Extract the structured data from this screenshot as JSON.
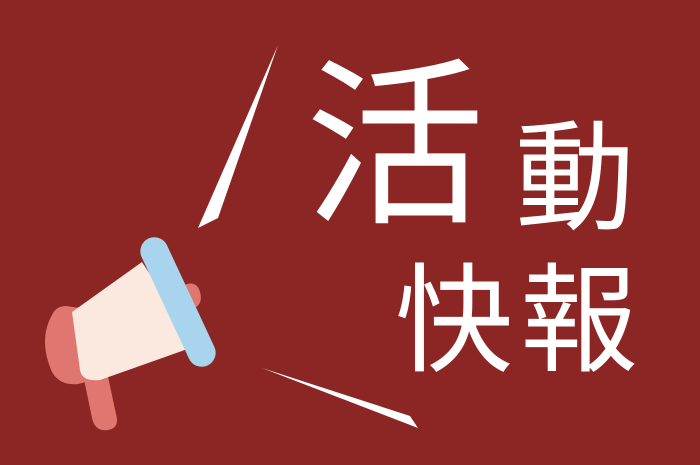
{
  "banner": {
    "title_chars": [
      "活",
      "動",
      "快",
      "報"
    ]
  },
  "icon": "megaphone-icon",
  "colors": {
    "background": "#8c2624",
    "text": "#ffffff",
    "megaphone_body": "#fbe9df",
    "megaphone_accent": "#df7670",
    "megaphone_rim": "#a8d4ee",
    "sound_lines": "#ffffff"
  }
}
